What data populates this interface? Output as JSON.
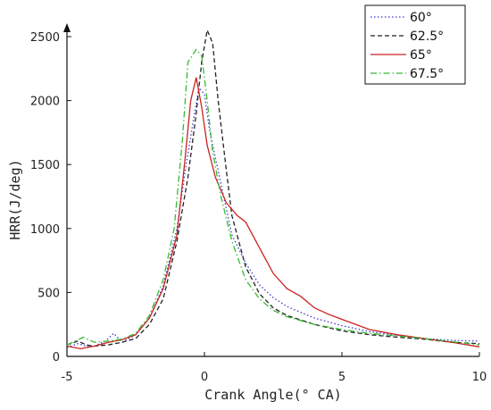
{
  "chart_data": {
    "type": "line",
    "title": "",
    "xlabel": "Crank Angle(° CA)",
    "ylabel": "HRR(J/deg)",
    "xlim": [
      -5,
      10
    ],
    "ylim": [
      0,
      2500
    ],
    "x_ticks": [
      -5,
      0,
      5,
      10
    ],
    "y_ticks": [
      0,
      500,
      1000,
      1500,
      2000,
      2500
    ],
    "grid": false,
    "legend_position": "top-right",
    "series": [
      {
        "name": "60°",
        "color": "#3a3acc",
        "dash": "dotted",
        "x": [
          -5,
          -4.6,
          -4.3,
          -4,
          -3.6,
          -3.3,
          -3,
          -2.5,
          -2,
          -1.5,
          -1,
          -0.7,
          -0.4,
          -0.2,
          0,
          0.2,
          0.5,
          1,
          1.5,
          2,
          2.5,
          3,
          4,
          5,
          6,
          7,
          8,
          9,
          10
        ],
        "y": [
          70,
          100,
          80,
          80,
          120,
          180,
          110,
          170,
          300,
          550,
          1000,
          1450,
          1850,
          2100,
          2050,
          1750,
          1450,
          950,
          730,
          560,
          460,
          390,
          300,
          240,
          195,
          165,
          140,
          125,
          120
        ]
      },
      {
        "name": "62.5°",
        "color": "#222222",
        "dash": "dashed",
        "x": [
          -5,
          -4.6,
          -4.3,
          -4,
          -3.5,
          -3,
          -2.5,
          -2,
          -1.5,
          -1,
          -0.6,
          -0.3,
          -0.1,
          0.1,
          0.3,
          0.5,
          0.8,
          1,
          1.5,
          2,
          2.5,
          3,
          4,
          5,
          6,
          7,
          8,
          9,
          10
        ],
        "y": [
          90,
          120,
          90,
          80,
          90,
          110,
          140,
          250,
          450,
          900,
          1400,
          1900,
          2300,
          2550,
          2450,
          2000,
          1450,
          1100,
          700,
          490,
          380,
          320,
          250,
          200,
          170,
          150,
          135,
          110,
          100
        ]
      },
      {
        "name": "65°",
        "color": "#cc2222",
        "dash": "solid",
        "x": [
          -5,
          -4.5,
          -4,
          -3.5,
          -3,
          -2.5,
          -2,
          -1.5,
          -1,
          -0.7,
          -0.5,
          -0.3,
          -0.1,
          0.1,
          0.4,
          0.8,
          1.2,
          1.5,
          2,
          2.5,
          3,
          3.5,
          4,
          4.5,
          5,
          6,
          7,
          8,
          9,
          10
        ],
        "y": [
          80,
          60,
          80,
          110,
          130,
          170,
          300,
          530,
          950,
          1550,
          2000,
          2180,
          1950,
          1650,
          1400,
          1200,
          1100,
          1050,
          850,
          650,
          530,
          470,
          380,
          330,
          290,
          210,
          170,
          140,
          110,
          75
        ]
      },
      {
        "name": "67.5°",
        "color": "#33bb33",
        "dash": "dashdot",
        "x": [
          -5,
          -4.6,
          -4.4,
          -4.2,
          -4,
          -3.5,
          -3,
          -2.5,
          -2,
          -1.5,
          -1.1,
          -0.8,
          -0.6,
          -0.3,
          -0.1,
          0.1,
          0.3,
          0.6,
          1,
          1.5,
          2,
          2.5,
          3,
          4,
          5,
          6,
          7,
          8,
          9,
          10
        ],
        "y": [
          90,
          130,
          150,
          130,
          110,
          120,
          135,
          180,
          320,
          600,
          1000,
          1700,
          2300,
          2400,
          2350,
          2000,
          1600,
          1250,
          900,
          600,
          450,
          360,
          310,
          250,
          210,
          180,
          160,
          140,
          115,
          90
        ]
      }
    ]
  }
}
